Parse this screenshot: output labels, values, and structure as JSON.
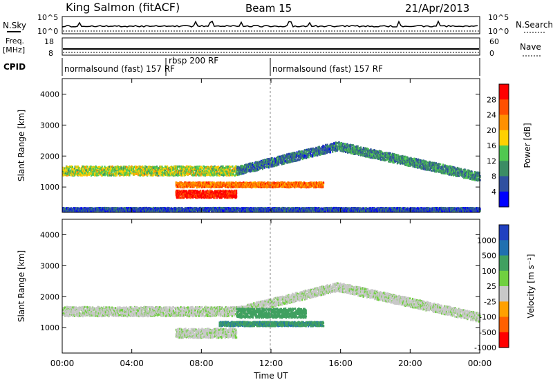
{
  "header": {
    "station": "King Salmon (fitACF)",
    "beam": "Beam 15",
    "date": "21/Apr/2013"
  },
  "strips": {
    "nsky_label": "N.Sky",
    "nsky_ticks": [
      "10^5",
      "10^0"
    ],
    "nsearch_label": "N.Search",
    "nsearch_ticks": [
      "10^5",
      "10^0"
    ],
    "freq_label_1": "Freq.",
    "freq_label_2": "[MHz]",
    "freq_ticks": [
      "18",
      "8"
    ],
    "nave_label": "Nave",
    "nave_ticks": [
      "60",
      "0"
    ],
    "cpid_label": "CPID",
    "cpid_segments": [
      {
        "label": "normalsound (fast) 157 RF",
        "start_hour": 0
      },
      {
        "label": "rbsp 200 RF",
        "start_hour": 6
      },
      {
        "label": "normalsound (fast) 157 RF",
        "start_hour": 12
      }
    ]
  },
  "chart_data": [
    {
      "type": "heatmap",
      "name": "power",
      "ylabel": "Slant Range [km]",
      "xlabel": "Time UT",
      "xlim": [
        0,
        24
      ],
      "ylim": [
        180,
        4500
      ],
      "yticks": [
        "1000",
        "2000",
        "3000",
        "4000"
      ],
      "colorbar": {
        "label": "Power [dB]",
        "ticks": [
          "28",
          "24",
          "20",
          "16",
          "12",
          "8",
          "4"
        ],
        "colors": [
          "#ff0000",
          "#ff5000",
          "#ff9000",
          "#ffd000",
          "#50c850",
          "#3c8c64",
          "#3050a0",
          "#0000ff"
        ]
      },
      "echo_bands": [
        {
          "hour_start": 0.0,
          "hour_end": 10.0,
          "range_center": 1550,
          "range_width": 150,
          "power": 14
        },
        {
          "hour_start": 10.0,
          "hour_end": 15.8,
          "range_center_start": 1550,
          "range_center_end": 2350,
          "power": 6
        },
        {
          "hour_start": 15.8,
          "hour_end": 24.0,
          "range_center_start": 2350,
          "range_center_end": 1350,
          "power": 8
        },
        {
          "hour_start": 6.5,
          "hour_end": 15.0,
          "range_center": 1100,
          "range_width": 80,
          "power": 22
        },
        {
          "hour_start": 6.5,
          "hour_end": 10.0,
          "range_center": 800,
          "range_width": 120,
          "power": 28
        },
        {
          "hour_start": 0.0,
          "hour_end": 24.0,
          "range_center": 300,
          "range_width": 60,
          "power": 4
        }
      ]
    },
    {
      "type": "heatmap",
      "name": "velocity",
      "ylabel": "Slant Range [km]",
      "xlabel": "Time UT",
      "xlim": [
        0,
        24
      ],
      "ylim": [
        180,
        4500
      ],
      "yticks": [
        "1000",
        "2000",
        "3000",
        "4000"
      ],
      "xticks": [
        "00:00",
        "04:00",
        "08:00",
        "12:00",
        "16:00",
        "20:00",
        "00:00"
      ],
      "colorbar": {
        "label": "Velocity [m s⁻¹]",
        "ticks": [
          "1000",
          "500",
          "100",
          "25",
          "-25",
          "-100",
          "-500",
          "-1000"
        ],
        "colors": [
          "#2040c0",
          "#2070b0",
          "#40a060",
          "#70d040",
          "#c8c8c8",
          "#ffa000",
          "#ff6000",
          "#ff0000"
        ]
      },
      "echo_bands": [
        {
          "hour_start": 0.0,
          "hour_end": 10.0,
          "range_center": 1550,
          "range_width": 150,
          "velocity": 0
        },
        {
          "hour_start": 10.0,
          "hour_end": 15.8,
          "range_center_start": 1550,
          "range_center_end": 2350,
          "velocity": 0
        },
        {
          "hour_start": 15.8,
          "hour_end": 24.0,
          "range_center_start": 2350,
          "range_center_end": 1350,
          "velocity": 0
        },
        {
          "hour_start": 10.0,
          "hour_end": 14.0,
          "range_center": 1500,
          "range_width": 150,
          "velocity": 80
        },
        {
          "hour_start": 9.0,
          "hour_end": 15.0,
          "range_center": 1150,
          "range_width": 70,
          "velocity": 90
        },
        {
          "hour_start": 6.5,
          "hour_end": 10.0,
          "range_center": 850,
          "range_width": 150,
          "velocity": 0
        }
      ]
    }
  ]
}
